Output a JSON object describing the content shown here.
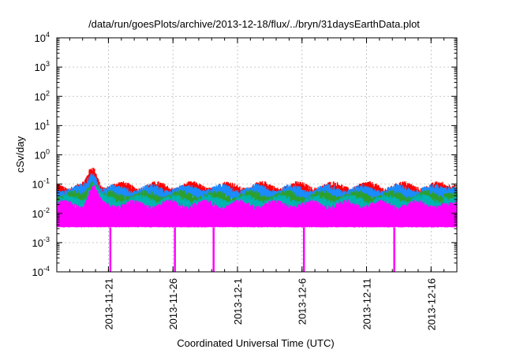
{
  "chart_data": {
    "type": "line",
    "title": "/data/run/goesPlots/archive/2013-12-18/flux/../bryn/31daysEarthData.plot",
    "xlabel": "Coordinated Universal Time (UTC)",
    "ylabel": "cSv/day",
    "yscale": "log",
    "ylim": [
      0.0001,
      10000
    ],
    "y_ticks": [
      {
        "value": 0.0001,
        "base": "10",
        "exp": "-4"
      },
      {
        "value": 0.001,
        "base": "10",
        "exp": "-3"
      },
      {
        "value": 0.01,
        "base": "10",
        "exp": "-2"
      },
      {
        "value": 0.1,
        "base": "10",
        "exp": "-1"
      },
      {
        "value": 1,
        "base": "10",
        "exp": "0"
      },
      {
        "value": 10,
        "base": "10",
        "exp": "1"
      },
      {
        "value": 100,
        "base": "10",
        "exp": "2"
      },
      {
        "value": 1000,
        "base": "10",
        "exp": "3"
      },
      {
        "value": 10000,
        "base": "10",
        "exp": "4"
      }
    ],
    "xlim": [
      "2013-11-17",
      "2013-12-18"
    ],
    "x_ticks": [
      "2013-11-21",
      "2013-11-26",
      "2013-12-1",
      "2013-12-6",
      "2013-12-11",
      "2013-12-16"
    ],
    "grid": true,
    "legend": "none",
    "series": [
      {
        "color": "#ff0000",
        "baseline": 0.055,
        "peak": 0.26
      },
      {
        "color": "#1a8cff",
        "baseline": 0.045,
        "peak": 0.2
      },
      {
        "color": "#2ca02c",
        "baseline": 0.028,
        "peak": 0.12
      },
      {
        "color": "#00b3b3",
        "baseline": 0.02,
        "peak": 0.09
      },
      {
        "color": "#ff00ff",
        "baseline": 0.013,
        "min": 0.0033,
        "peak": 0.06
      }
    ],
    "dropouts": [
      "2013-11-21",
      "2013-11-26",
      "2013-11-29",
      "2013-12-6",
      "2013-12-13"
    ],
    "data_gap": [
      "2013-12-17",
      "2013-12-17.8"
    ]
  }
}
